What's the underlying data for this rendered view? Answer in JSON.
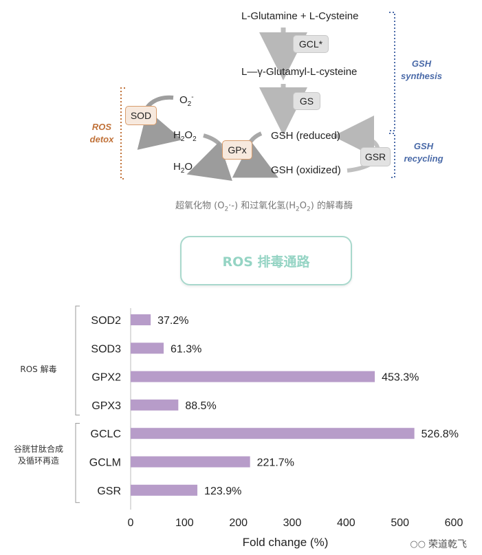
{
  "pathway": {
    "substrate": "L-Glutamine + L-Cysteine",
    "enzyme_gcl": "GCL*",
    "intermediate": "L—γ-Glutamyl-L-cysteine",
    "enzyme_gs": "GS",
    "gsh_reduced": "GSH (reduced)",
    "gsh_oxidized": "GSH (oxidized)",
    "enzyme_gsr": "GSR",
    "enzyme_gpx": "GPx",
    "enzyme_sod": "SOD",
    "superoxide": "O",
    "superoxide_sub": "2",
    "superoxide_sup": "-",
    "h2o2_a": "H",
    "h2o2_b": "2",
    "h2o2_c": "O",
    "h2o2_d": "2",
    "h2o_a": "H",
    "h2o_b": "2",
    "h2o_c": "O",
    "ros_detox_line1": "ROS",
    "ros_detox_line2": "detox",
    "gsh_synthesis_line1": "GSH",
    "gsh_synthesis_line2": "synthesis",
    "gsh_recycling_line1": "GSH",
    "gsh_recycling_line2": "recycling",
    "caption_a": "超氧化物 (O",
    "caption_b": "2",
    "caption_c": "·-) 和过氧化氢(H",
    "caption_d": "2",
    "caption_e": "O",
    "caption_f": "2",
    "caption_g": ") 的解毒酶"
  },
  "title": "ROS 排毒通路",
  "groups": [
    {
      "label_line1": "ROS 解毒",
      "label_line2": ""
    },
    {
      "label_line1": "谷胱甘肽合成",
      "label_line2": "及循环再造"
    }
  ],
  "chart_data": {
    "type": "bar",
    "orientation": "horizontal",
    "categories": [
      "SOD2",
      "SOD3",
      "GPX2",
      "GPX3",
      "GCLC",
      "GCLM",
      "GSR"
    ],
    "values": [
      37.2,
      61.3,
      453.3,
      88.5,
      526.8,
      221.7,
      123.9
    ],
    "value_labels": [
      "37.2%",
      "61.3%",
      "453.3%",
      "88.5%",
      "526.8%",
      "221.7%",
      "123.9%"
    ],
    "xlabel": "Fold change (%)",
    "ylabel": "",
    "title": "",
    "xlim": [
      0,
      600
    ],
    "xticks": [
      0,
      100,
      200,
      300,
      400,
      500,
      600
    ],
    "bar_color": "#b79cc9",
    "grid": false,
    "legend": "none"
  },
  "watermark": "荣道乾飞"
}
